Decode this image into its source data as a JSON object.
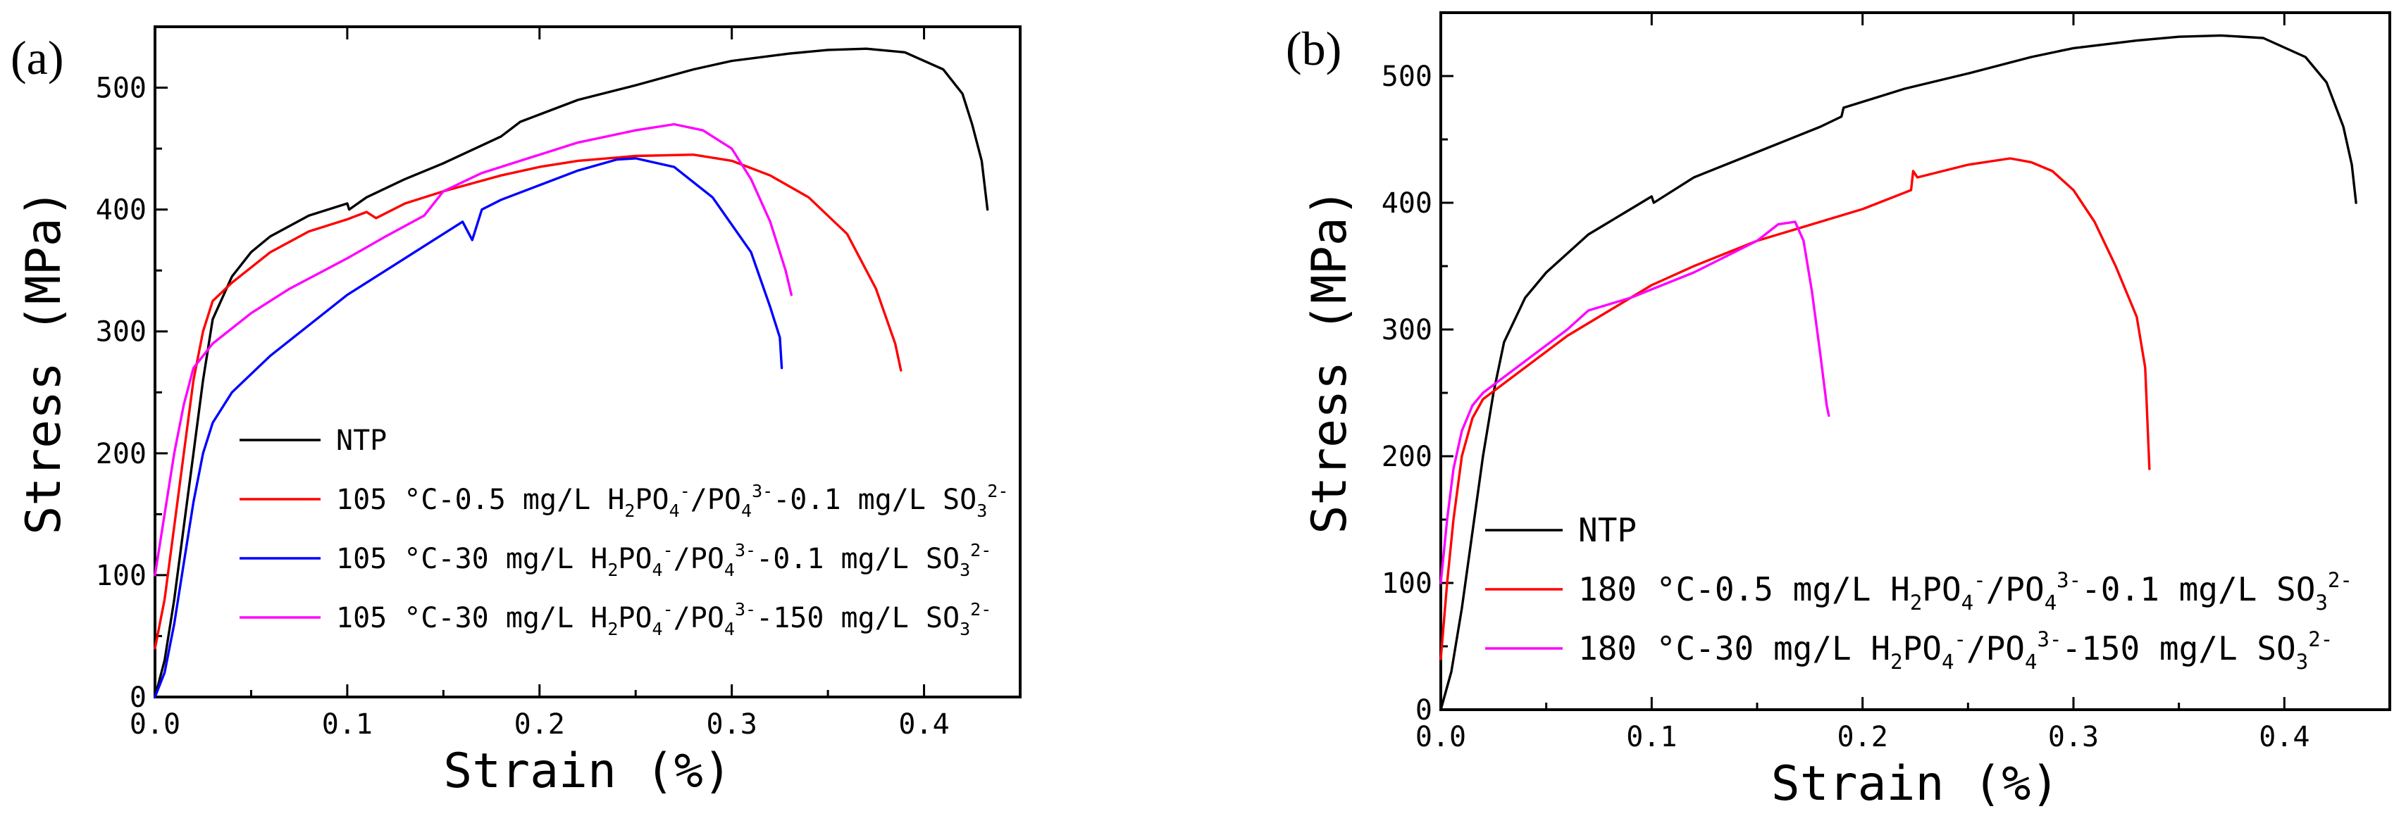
{
  "chart_data": [
    {
      "type": "line",
      "panel_label": "(a)",
      "xlabel": "Strain (%)",
      "ylabel": "Stress (MPa)",
      "xlim": [
        0.0,
        0.45
      ],
      "ylim": [
        0,
        550
      ],
      "x_ticks": [
        "0.0",
        "0.1",
        "0.2",
        "0.3",
        "0.4"
      ],
      "y_ticks": [
        "0",
        "100",
        "200",
        "300",
        "400",
        "500"
      ],
      "grid": false,
      "legend_position": "bottom-left",
      "legend": [
        {
          "label": "NTP",
          "color": "#000000"
        },
        {
          "label": "105 °C-0.5 mg/L H₂PO₄⁻/PO₄³⁻-0.1 mg/L SO₃²⁻",
          "color": "#ff0000"
        },
        {
          "label": "105 °C-30 mg/L H₂PO₄⁻/PO₄³⁻-0.1 mg/L SO₃²⁻",
          "color": "#0000ff"
        },
        {
          "label": "105 °C-30 mg/L H₂PO₄⁻/PO₄³⁻-150 mg/L SO₃²⁻",
          "color": "#ff00ff"
        }
      ],
      "series": [
        {
          "color": "#000000",
          "points": [
            [
              0,
              0
            ],
            [
              0.005,
              30
            ],
            [
              0.01,
              80
            ],
            [
              0.015,
              140
            ],
            [
              0.02,
              200
            ],
            [
              0.025,
              260
            ],
            [
              0.03,
              310
            ],
            [
              0.04,
              345
            ],
            [
              0.05,
              365
            ],
            [
              0.06,
              378
            ],
            [
              0.08,
              395
            ],
            [
              0.1,
              405
            ],
            [
              0.101,
              400
            ],
            [
              0.11,
              410
            ],
            [
              0.13,
              425
            ],
            [
              0.15,
              438
            ],
            [
              0.18,
              460
            ],
            [
              0.19,
              472
            ],
            [
              0.2,
              478
            ],
            [
              0.22,
              490
            ],
            [
              0.25,
              502
            ],
            [
              0.28,
              515
            ],
            [
              0.3,
              522
            ],
            [
              0.33,
              528
            ],
            [
              0.35,
              531
            ],
            [
              0.37,
              532
            ],
            [
              0.39,
              529
            ],
            [
              0.41,
              515
            ],
            [
              0.42,
              495
            ],
            [
              0.425,
              470
            ],
            [
              0.43,
              440
            ],
            [
              0.433,
              400
            ]
          ]
        },
        {
          "color": "#ff0000",
          "points": [
            [
              0,
              40
            ],
            [
              0.005,
              80
            ],
            [
              0.01,
              140
            ],
            [
              0.015,
              200
            ],
            [
              0.02,
              260
            ],
            [
              0.025,
              300
            ],
            [
              0.03,
              325
            ],
            [
              0.04,
              340
            ],
            [
              0.06,
              365
            ],
            [
              0.08,
              382
            ],
            [
              0.1,
              392
            ],
            [
              0.11,
              398
            ],
            [
              0.115,
              393
            ],
            [
              0.13,
              405
            ],
            [
              0.15,
              415
            ],
            [
              0.18,
              428
            ],
            [
              0.2,
              435
            ],
            [
              0.22,
              440
            ],
            [
              0.25,
              444
            ],
            [
              0.28,
              445
            ],
            [
              0.3,
              440
            ],
            [
              0.32,
              428
            ],
            [
              0.34,
              410
            ],
            [
              0.36,
              380
            ],
            [
              0.375,
              335
            ],
            [
              0.385,
              290
            ],
            [
              0.388,
              268
            ]
          ]
        },
        {
          "color": "#0000ff",
          "points": [
            [
              0,
              0
            ],
            [
              0.005,
              20
            ],
            [
              0.01,
              60
            ],
            [
              0.015,
              110
            ],
            [
              0.02,
              160
            ],
            [
              0.025,
              200
            ],
            [
              0.03,
              225
            ],
            [
              0.04,
              250
            ],
            [
              0.06,
              280
            ],
            [
              0.08,
              305
            ],
            [
              0.1,
              330
            ],
            [
              0.12,
              350
            ],
            [
              0.14,
              370
            ],
            [
              0.16,
              390
            ],
            [
              0.165,
              375
            ],
            [
              0.17,
              400
            ],
            [
              0.18,
              408
            ],
            [
              0.2,
              420
            ],
            [
              0.22,
              432
            ],
            [
              0.24,
              441
            ],
            [
              0.25,
              442
            ],
            [
              0.27,
              435
            ],
            [
              0.29,
              410
            ],
            [
              0.31,
              365
            ],
            [
              0.32,
              320
            ],
            [
              0.325,
              295
            ],
            [
              0.326,
              270
            ]
          ]
        },
        {
          "color": "#ff00ff",
          "points": [
            [
              0,
              100
            ],
            [
              0.005,
              150
            ],
            [
              0.01,
              200
            ],
            [
              0.015,
              240
            ],
            [
              0.02,
              270
            ],
            [
              0.03,
              290
            ],
            [
              0.05,
              315
            ],
            [
              0.07,
              335
            ],
            [
              0.1,
              360
            ],
            [
              0.12,
              378
            ],
            [
              0.14,
              395
            ],
            [
              0.15,
              415
            ],
            [
              0.17,
              430
            ],
            [
              0.2,
              445
            ],
            [
              0.22,
              455
            ],
            [
              0.25,
              465
            ],
            [
              0.27,
              470
            ],
            [
              0.285,
              465
            ],
            [
              0.3,
              450
            ],
            [
              0.31,
              425
            ],
            [
              0.32,
              390
            ],
            [
              0.328,
              350
            ],
            [
              0.331,
              330
            ]
          ]
        }
      ]
    },
    {
      "type": "line",
      "panel_label": "(b)",
      "xlabel": "Strain (%)",
      "ylabel": "Stress (MPa)",
      "xlim": [
        0.0,
        0.45
      ],
      "ylim": [
        0,
        550
      ],
      "x_ticks": [
        "0.0",
        "0.1",
        "0.2",
        "0.3",
        "0.4"
      ],
      "y_ticks": [
        "0",
        "100",
        "200",
        "300",
        "400",
        "500"
      ],
      "grid": false,
      "legend_position": "bottom-left",
      "legend": [
        {
          "label": "NTP",
          "color": "#000000"
        },
        {
          "label": "180 °C-0.5 mg/L H₂PO₄⁻/PO₄³⁻-0.1 mg/L SO₃²⁻",
          "color": "#ff0000"
        },
        {
          "label": "180 °C-30 mg/L H₂PO₄⁻/PO₄³⁻-150 mg/L SO₃²⁻",
          "color": "#ff00ff"
        }
      ],
      "series": [
        {
          "color": "#000000",
          "points": [
            [
              0,
              0
            ],
            [
              0.005,
              30
            ],
            [
              0.01,
              80
            ],
            [
              0.015,
              140
            ],
            [
              0.02,
              200
            ],
            [
              0.025,
              250
            ],
            [
              0.03,
              290
            ],
            [
              0.04,
              325
            ],
            [
              0.05,
              345
            ],
            [
              0.07,
              375
            ],
            [
              0.09,
              395
            ],
            [
              0.1,
              405
            ],
            [
              0.101,
              400
            ],
            [
              0.12,
              420
            ],
            [
              0.15,
              440
            ],
            [
              0.18,
              460
            ],
            [
              0.19,
              468
            ],
            [
              0.191,
              475
            ],
            [
              0.22,
              490
            ],
            [
              0.25,
              502
            ],
            [
              0.28,
              515
            ],
            [
              0.3,
              522
            ],
            [
              0.33,
              528
            ],
            [
              0.35,
              531
            ],
            [
              0.37,
              532
            ],
            [
              0.39,
              530
            ],
            [
              0.41,
              515
            ],
            [
              0.42,
              495
            ],
            [
              0.428,
              460
            ],
            [
              0.432,
              430
            ],
            [
              0.434,
              400
            ]
          ]
        },
        {
          "color": "#ff0000",
          "points": [
            [
              0,
              40
            ],
            [
              0.003,
              100
            ],
            [
              0.006,
              150
            ],
            [
              0.01,
              200
            ],
            [
              0.015,
              230
            ],
            [
              0.02,
              245
            ],
            [
              0.04,
              270
            ],
            [
              0.06,
              295
            ],
            [
              0.08,
              315
            ],
            [
              0.1,
              335
            ],
            [
              0.12,
              350
            ],
            [
              0.15,
              370
            ],
            [
              0.18,
              385
            ],
            [
              0.2,
              395
            ],
            [
              0.22,
              408
            ],
            [
              0.223,
              410
            ],
            [
              0.224,
              425
            ],
            [
              0.226,
              420
            ],
            [
              0.25,
              430
            ],
            [
              0.27,
              435
            ],
            [
              0.28,
              432
            ],
            [
              0.29,
              425
            ],
            [
              0.3,
              410
            ],
            [
              0.31,
              385
            ],
            [
              0.32,
              350
            ],
            [
              0.33,
              310
            ],
            [
              0.334,
              270
            ],
            [
              0.335,
              230
            ],
            [
              0.336,
              190
            ]
          ]
        },
        {
          "color": "#ff00ff",
          "points": [
            [
              0,
              100
            ],
            [
              0.003,
              150
            ],
            [
              0.006,
              190
            ],
            [
              0.01,
              220
            ],
            [
              0.015,
              240
            ],
            [
              0.02,
              250
            ],
            [
              0.04,
              275
            ],
            [
              0.06,
              300
            ],
            [
              0.07,
              315
            ],
            [
              0.09,
              325
            ],
            [
              0.12,
              345
            ],
            [
              0.15,
              370
            ],
            [
              0.16,
              383
            ],
            [
              0.168,
              385
            ],
            [
              0.172,
              370
            ],
            [
              0.176,
              330
            ],
            [
              0.18,
              280
            ],
            [
              0.183,
              240
            ],
            [
              0.184,
              232
            ]
          ]
        }
      ]
    }
  ]
}
